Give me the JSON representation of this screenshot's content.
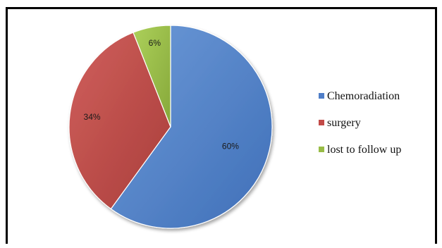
{
  "chart_data": {
    "type": "pie",
    "title": "",
    "legend_position": "right",
    "slices": [
      {
        "name": "Chemoradiation",
        "value": 60,
        "label": "60%",
        "color": "#4f7ec8"
      },
      {
        "name": "surgery",
        "value": 34,
        "label": "34%",
        "color": "#c24a47"
      },
      {
        "name": "lost to follow up",
        "value": 6,
        "label": "6%",
        "color": "#98bc46"
      }
    ]
  }
}
